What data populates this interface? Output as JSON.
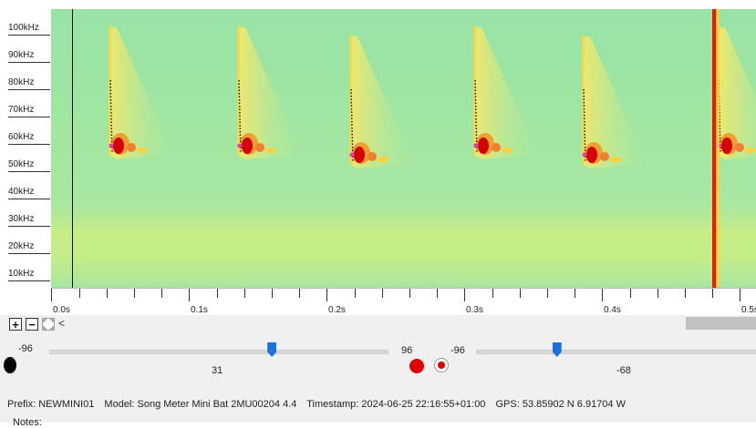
{
  "y_axis_labels": [
    "100kHz",
    "90kHz",
    "80kHz",
    "70kHz",
    "60kHz",
    "50kHz",
    "40kHz",
    "30kHz",
    "20kHz",
    "10kHz"
  ],
  "x_axis_labels": [
    "0.0s",
    "0.1s",
    "0.2s",
    "0.3s",
    "0.4s",
    "0.5s"
  ],
  "toolbar": {
    "zoom_in_icon": "plus-box-icon",
    "zoom_out_icon": "minus-box-icon",
    "fit_icon": "fit-box-icon",
    "scroll_left_glyph": "<"
  },
  "controls": {
    "slider1_min": "-96",
    "slider1_value": "31",
    "slider1_max": "96",
    "slider2_min": "-96",
    "slider2_value": "-68",
    "slider1_level": 0.66,
    "slider2_level": 0.29
  },
  "status": {
    "prefix": "Prefix: NEWMINI01",
    "model": "Model: Song Meter Mini Bat 2MU00204 4.4",
    "timestamp": "Timestamp: 2024-06-25 22:16:55+01:00",
    "gps": "GPS:  53.85902 N 6.91704 W",
    "notes": "Notes:"
  },
  "colors": {
    "spectrogram_bg": "#9fe5a8",
    "call_hot": "#d40000",
    "call_warm": "#ffd23a",
    "slider_thumb": "#1d72d9",
    "record_red": "#e00000"
  }
}
